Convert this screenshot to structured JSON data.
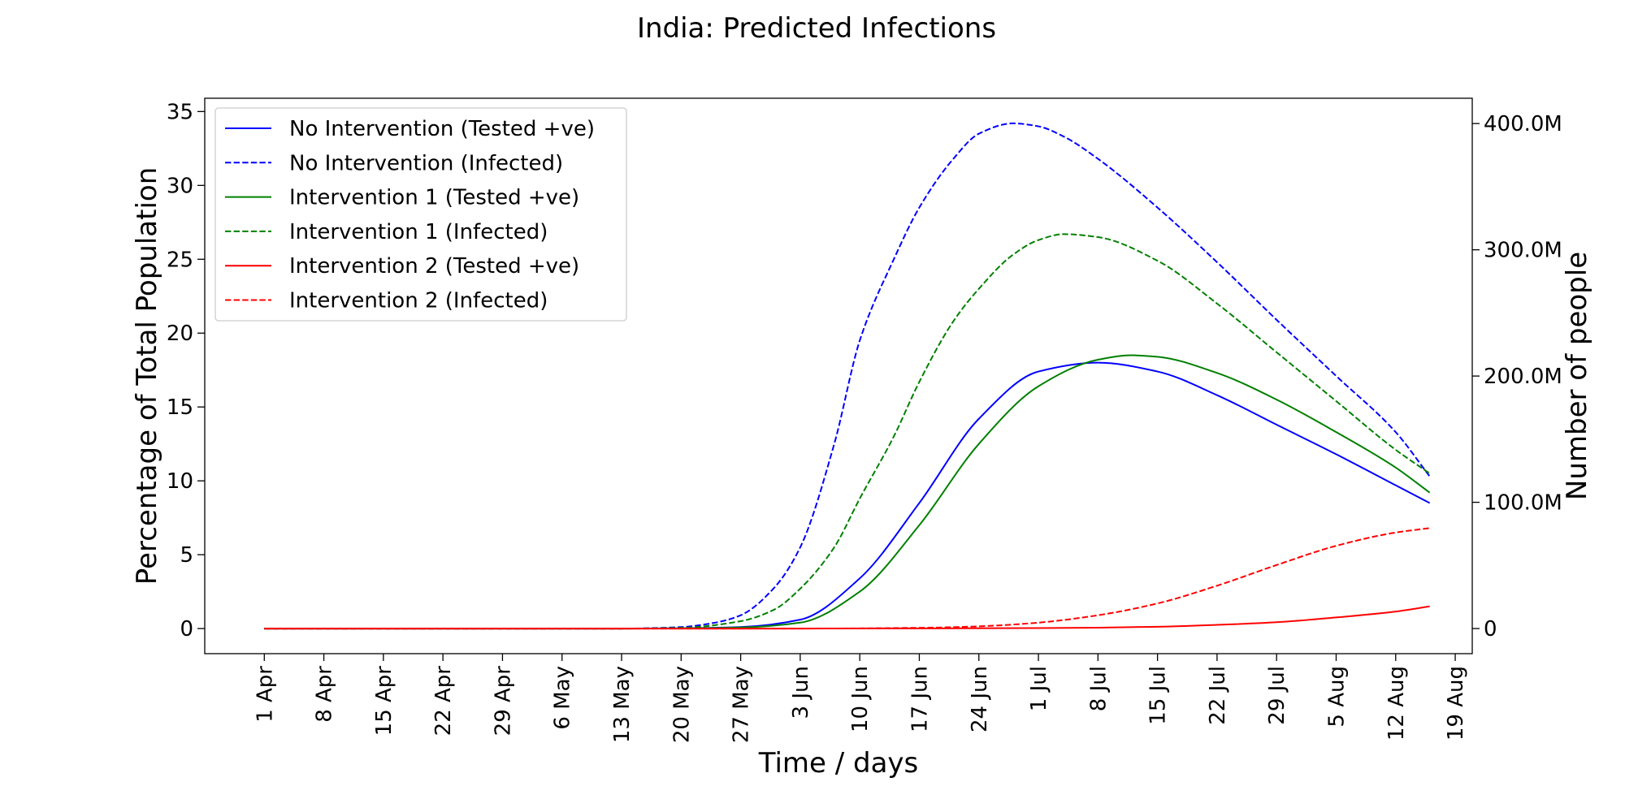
{
  "chart_data": {
    "type": "line",
    "title": "India: Predicted Infections",
    "xlabel": "Time / days",
    "ylabel": "Percentage of Total Population",
    "y2label": "Number of people",
    "xlim": [
      "2020-03-25",
      "2020-08-21"
    ],
    "ylim": [
      -1.7,
      35.9
    ],
    "x_ticks": [
      {
        "date": "2020-04-01",
        "label": "1 Apr"
      },
      {
        "date": "2020-04-08",
        "label": "8 Apr"
      },
      {
        "date": "2020-04-15",
        "label": "15 Apr"
      },
      {
        "date": "2020-04-22",
        "label": "22 Apr"
      },
      {
        "date": "2020-04-29",
        "label": "29 Apr"
      },
      {
        "date": "2020-05-06",
        "label": "6 May"
      },
      {
        "date": "2020-05-13",
        "label": "13 May"
      },
      {
        "date": "2020-05-20",
        "label": "20 May"
      },
      {
        "date": "2020-05-27",
        "label": "27 May"
      },
      {
        "date": "2020-06-03",
        "label": "3 Jun"
      },
      {
        "date": "2020-06-10",
        "label": "10 Jun"
      },
      {
        "date": "2020-06-17",
        "label": "17 Jun"
      },
      {
        "date": "2020-06-24",
        "label": "24 Jun"
      },
      {
        "date": "2020-07-01",
        "label": "1 Jul"
      },
      {
        "date": "2020-07-08",
        "label": "8 Jul"
      },
      {
        "date": "2020-07-15",
        "label": "15 Jul"
      },
      {
        "date": "2020-07-22",
        "label": "22 Jul"
      },
      {
        "date": "2020-07-29",
        "label": "29 Jul"
      },
      {
        "date": "2020-08-05",
        "label": "5 Aug"
      },
      {
        "date": "2020-08-12",
        "label": "12 Aug"
      },
      {
        "date": "2020-08-19",
        "label": "19 Aug"
      }
    ],
    "y_ticks": [
      {
        "value": 0,
        "label": "0"
      },
      {
        "value": 5,
        "label": "5"
      },
      {
        "value": 10,
        "label": "10"
      },
      {
        "value": 15,
        "label": "15"
      },
      {
        "value": 20,
        "label": "20"
      },
      {
        "value": 25,
        "label": "25"
      },
      {
        "value": 30,
        "label": "30"
      },
      {
        "value": 35,
        "label": "35"
      }
    ],
    "y2_ticks": [
      {
        "people": 0,
        "label": "0"
      },
      {
        "people": 100000000,
        "label": "100.0M"
      },
      {
        "people": 200000000,
        "label": "200.0M"
      },
      {
        "people": 300000000,
        "label": "300.0M"
      },
      {
        "people": 400000000,
        "label": "400.0M"
      }
    ],
    "grid": false,
    "legend_position": "top-left",
    "series": [
      {
        "name": "No Intervention (Tested +ve)",
        "color": "#0000ff",
        "style": "solid",
        "x": [
          "2020-04-01",
          "2020-05-13",
          "2020-05-20",
          "2020-05-27",
          "2020-06-03",
          "2020-06-10",
          "2020-06-17",
          "2020-06-24",
          "2020-07-01",
          "2020-07-08",
          "2020-07-15",
          "2020-07-22",
          "2020-07-29",
          "2020-08-05",
          "2020-08-12",
          "2020-08-16"
        ],
        "y": [
          0,
          0,
          0.02,
          0.1,
          0.6,
          3.4,
          8.5,
          14.2,
          17.4,
          18.0,
          17.4,
          15.8,
          13.8,
          11.8,
          9.7,
          8.5
        ]
      },
      {
        "name": "No Intervention (Infected)",
        "color": "#0000ff",
        "style": "dashed",
        "x": [
          "2020-04-01",
          "2020-05-13",
          "2020-05-20",
          "2020-05-24",
          "2020-05-27",
          "2020-05-31",
          "2020-06-03",
          "2020-06-07",
          "2020-06-10",
          "2020-06-14",
          "2020-06-17",
          "2020-06-21",
          "2020-06-24",
          "2020-06-28",
          "2020-07-01",
          "2020-07-04",
          "2020-07-08",
          "2020-07-15",
          "2020-07-22",
          "2020-07-29",
          "2020-08-05",
          "2020-08-12",
          "2020-08-16"
        ],
        "y": [
          0,
          0,
          0.1,
          0.4,
          0.9,
          2.8,
          5.5,
          12.5,
          19.5,
          25.0,
          28.5,
          31.8,
          33.5,
          34.2,
          34.0,
          33.3,
          31.8,
          28.5,
          24.8,
          20.9,
          17.1,
          13.3,
          10.3
        ]
      },
      {
        "name": "Intervention 1 (Tested +ve)",
        "color": "#008000",
        "style": "solid",
        "x": [
          "2020-04-01",
          "2020-05-13",
          "2020-05-20",
          "2020-05-27",
          "2020-06-03",
          "2020-06-10",
          "2020-06-17",
          "2020-06-24",
          "2020-07-01",
          "2020-07-08",
          "2020-07-12",
          "2020-07-15",
          "2020-07-22",
          "2020-07-29",
          "2020-08-05",
          "2020-08-12",
          "2020-08-16"
        ],
        "y": [
          0,
          0,
          0.01,
          0.07,
          0.4,
          2.5,
          7.0,
          12.5,
          16.4,
          18.2,
          18.5,
          18.4,
          17.3,
          15.5,
          13.3,
          10.9,
          9.2
        ]
      },
      {
        "name": "Intervention 1 (Infected)",
        "color": "#008000",
        "style": "dashed",
        "x": [
          "2020-04-01",
          "2020-05-13",
          "2020-05-20",
          "2020-05-27",
          "2020-05-31",
          "2020-06-03",
          "2020-06-07",
          "2020-06-10",
          "2020-06-14",
          "2020-06-17",
          "2020-06-21",
          "2020-06-24",
          "2020-06-28",
          "2020-07-01",
          "2020-07-04",
          "2020-07-08",
          "2020-07-15",
          "2020-07-22",
          "2020-07-29",
          "2020-08-05",
          "2020-08-12",
          "2020-08-16"
        ],
        "y": [
          0,
          0,
          0.05,
          0.5,
          1.3,
          2.7,
          5.5,
          8.8,
          13.0,
          16.7,
          20.8,
          23.0,
          25.3,
          26.3,
          26.7,
          26.5,
          24.9,
          22.0,
          18.7,
          15.4,
          12.1,
          10.5
        ]
      },
      {
        "name": "Intervention 2 (Tested +ve)",
        "color": "#ff0000",
        "style": "solid",
        "x": [
          "2020-04-01",
          "2020-06-03",
          "2020-06-17",
          "2020-07-01",
          "2020-07-08",
          "2020-07-15",
          "2020-07-22",
          "2020-07-29",
          "2020-08-05",
          "2020-08-12",
          "2020-08-16"
        ],
        "y": [
          0,
          0,
          0.01,
          0.03,
          0.06,
          0.12,
          0.25,
          0.43,
          0.75,
          1.15,
          1.5
        ]
      },
      {
        "name": "Intervention 2 (Infected)",
        "color": "#ff0000",
        "style": "dashed",
        "x": [
          "2020-04-01",
          "2020-06-03",
          "2020-06-17",
          "2020-06-24",
          "2020-07-01",
          "2020-07-08",
          "2020-07-15",
          "2020-07-22",
          "2020-07-29",
          "2020-08-05",
          "2020-08-12",
          "2020-08-16"
        ],
        "y": [
          0,
          0,
          0.05,
          0.15,
          0.4,
          0.9,
          1.7,
          2.9,
          4.3,
          5.6,
          6.5,
          6.8
        ]
      }
    ]
  }
}
